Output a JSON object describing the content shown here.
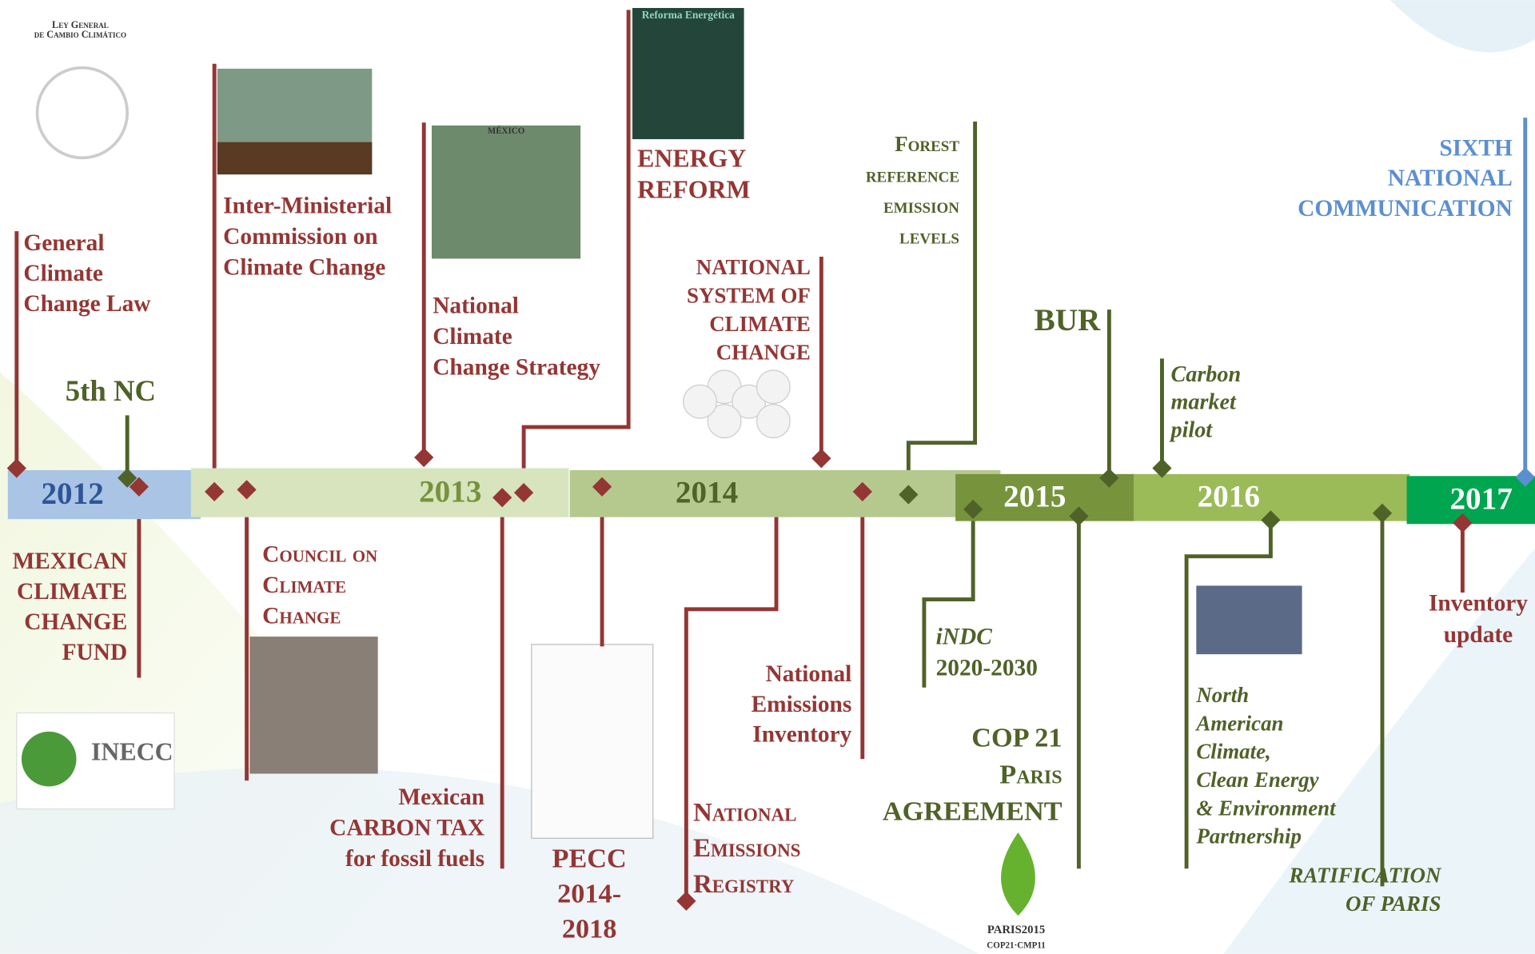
{
  "header": {
    "lines": [
      "Ley General",
      "de Cambio Climático"
    ]
  },
  "years": [
    "2012",
    "2013",
    "2014",
    "2015",
    "2016",
    "2017"
  ],
  "events": [
    {
      "lines": [
        "General",
        "Climate",
        "Change Law"
      ]
    },
    {
      "lines": [
        "5th NC"
      ]
    },
    {
      "lines": [
        "MEXICAN",
        "CLIMATE",
        "CHANGE",
        "FUND"
      ]
    },
    {
      "lines": [
        "Inter-Ministerial",
        "Commission on",
        "Climate Change"
      ]
    },
    {
      "lines": [
        "Council on",
        "Climate",
        "Change"
      ]
    },
    {
      "lines": [
        "National",
        "Climate",
        "Change Strategy"
      ]
    },
    {
      "lines": [
        "Mexican",
        "CARBON TAX",
        "for fossil fuels"
      ]
    },
    {
      "lines": [
        "ENERGY",
        "REFORM"
      ]
    },
    {
      "lines": [
        "PECC",
        "2014-",
        "2018"
      ]
    },
    {
      "lines": [
        "NATIONAL",
        "SYSTEM OF",
        "CLIMATE",
        "CHANGE"
      ]
    },
    {
      "lines": [
        "National",
        "Emissions",
        "Inventory"
      ]
    },
    {
      "lines": [
        "National",
        "Emissions",
        "Registry"
      ]
    },
    {
      "lines": [
        "Forest",
        "reference",
        "emission",
        "levels"
      ]
    },
    {
      "lines": [
        "BUR"
      ]
    },
    {
      "lines": [
        "Carbon",
        "market",
        "pilot"
      ]
    },
    {
      "lines": [
        "iNDC",
        "2020-2030"
      ]
    },
    {
      "lines": [
        "COP 21",
        "Paris",
        "AGREEMENT"
      ]
    },
    {
      "lines": [
        "SIXTH",
        "NATIONAL",
        "COMMUNICATION"
      ]
    },
    {
      "lines": [
        "North",
        "American",
        "Climate,",
        "Clean    Energy",
        "& Environment",
        "Partnership"
      ]
    },
    {
      "lines": [
        "RATIFICATION",
        "OF PARIS"
      ]
    },
    {
      "lines": [
        "Inventory",
        "update"
      ]
    }
  ],
  "images": {
    "inecc": "INECC",
    "mexico": "MÉXICO",
    "reforma": "Reforma Energética",
    "paris": "PARIS2015",
    "cop": "COP21·CMP11"
  }
}
